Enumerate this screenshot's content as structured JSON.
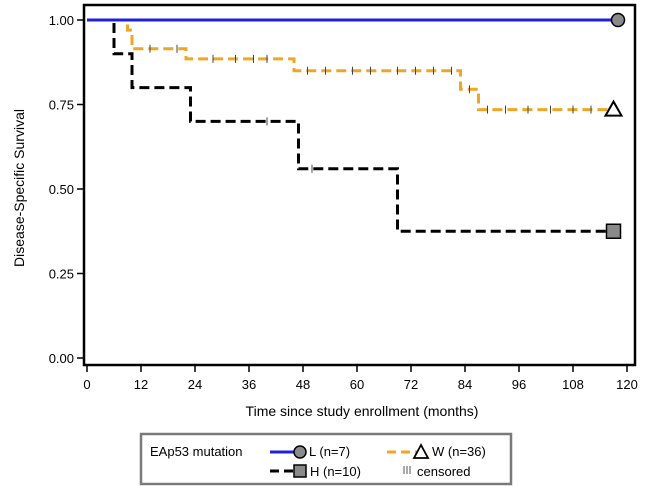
{
  "chart_data": {
    "type": "line",
    "subtype": "kaplan-meier-step",
    "title": "",
    "xlabel": "Time since study enrollment (months)",
    "ylabel": "Disease-Specific Survival",
    "xlim": [
      0,
      120
    ],
    "ylim": [
      0,
      1
    ],
    "xticks": [
      0,
      12,
      24,
      36,
      48,
      60,
      72,
      84,
      96,
      108,
      120
    ],
    "yticks": [
      0.0,
      0.25,
      0.5,
      0.75,
      1.0
    ],
    "ytick_labels": [
      "0.00",
      "0.25",
      "0.50",
      "0.75",
      "1.00"
    ],
    "grid": false,
    "legend": {
      "placement": "bottom",
      "title": "EAp53 mutation",
      "censored_label": "censored"
    },
    "series": [
      {
        "name": "L (n=7)",
        "color": "#1f1fe0",
        "dash": "solid",
        "marker": "circle",
        "steps": [
          [
            0,
            1.0
          ],
          [
            118,
            1.0
          ]
        ],
        "censored": [],
        "end": [
          118,
          1.0
        ]
      },
      {
        "name": "W (n=36)",
        "color": "#f0a623",
        "dash": "dashed",
        "marker": "triangle",
        "steps": [
          [
            0,
            1.0
          ],
          [
            9,
            1.0
          ],
          [
            9,
            0.97
          ],
          [
            10,
            0.97
          ],
          [
            10,
            0.915
          ],
          [
            22,
            0.915
          ],
          [
            22,
            0.885
          ],
          [
            46,
            0.885
          ],
          [
            46,
            0.85
          ],
          [
            83,
            0.85
          ],
          [
            83,
            0.795
          ],
          [
            87,
            0.795
          ],
          [
            87,
            0.735
          ],
          [
            117,
            0.735
          ]
        ],
        "censored": [
          14,
          20,
          28,
          33,
          37,
          40,
          49,
          53,
          59,
          63,
          69,
          73,
          77,
          81,
          85,
          89,
          93,
          98,
          103,
          108,
          112
        ],
        "end": [
          117,
          0.735
        ]
      },
      {
        "name": "H (n=10)",
        "color": "#000000",
        "dash": "dashed",
        "marker": "square",
        "steps": [
          [
            0,
            1.0
          ],
          [
            6,
            1.0
          ],
          [
            6,
            0.9
          ],
          [
            10,
            0.9
          ],
          [
            10,
            0.8
          ],
          [
            23,
            0.8
          ],
          [
            23,
            0.7
          ],
          [
            47,
            0.7
          ],
          [
            47,
            0.56
          ],
          [
            69,
            0.56
          ],
          [
            69,
            0.375
          ],
          [
            117,
            0.375
          ]
        ],
        "censored": [
          40,
          50
        ],
        "end": [
          117,
          0.375
        ]
      }
    ]
  }
}
